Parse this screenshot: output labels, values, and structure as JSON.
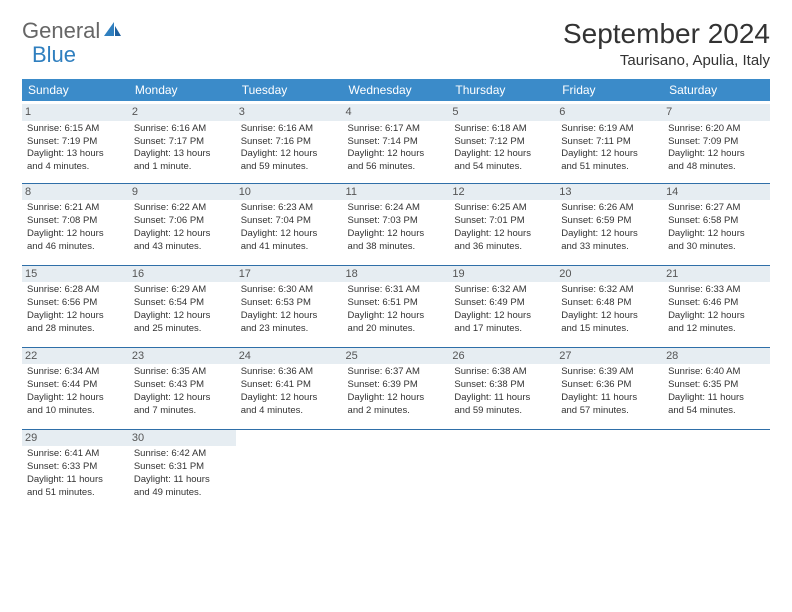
{
  "brand": {
    "part1": "General",
    "part2": "Blue"
  },
  "title": "September 2024",
  "location": "Taurisano, Apulia, Italy",
  "headers": [
    "Sunday",
    "Monday",
    "Tuesday",
    "Wednesday",
    "Thursday",
    "Friday",
    "Saturday"
  ],
  "colors": {
    "header_bg": "#3b8bc9",
    "header_fg": "#ffffff",
    "daynum_bg": "#e6edf2",
    "rule": "#2f6fa8",
    "brand_blue": "#2f7fbf",
    "text": "#333333"
  },
  "weeks": [
    [
      {
        "n": "1",
        "sr": "Sunrise: 6:15 AM",
        "ss": "Sunset: 7:19 PM",
        "d1": "Daylight: 13 hours",
        "d2": "and 4 minutes."
      },
      {
        "n": "2",
        "sr": "Sunrise: 6:16 AM",
        "ss": "Sunset: 7:17 PM",
        "d1": "Daylight: 13 hours",
        "d2": "and 1 minute."
      },
      {
        "n": "3",
        "sr": "Sunrise: 6:16 AM",
        "ss": "Sunset: 7:16 PM",
        "d1": "Daylight: 12 hours",
        "d2": "and 59 minutes."
      },
      {
        "n": "4",
        "sr": "Sunrise: 6:17 AM",
        "ss": "Sunset: 7:14 PM",
        "d1": "Daylight: 12 hours",
        "d2": "and 56 minutes."
      },
      {
        "n": "5",
        "sr": "Sunrise: 6:18 AM",
        "ss": "Sunset: 7:12 PM",
        "d1": "Daylight: 12 hours",
        "d2": "and 54 minutes."
      },
      {
        "n": "6",
        "sr": "Sunrise: 6:19 AM",
        "ss": "Sunset: 7:11 PM",
        "d1": "Daylight: 12 hours",
        "d2": "and 51 minutes."
      },
      {
        "n": "7",
        "sr": "Sunrise: 6:20 AM",
        "ss": "Sunset: 7:09 PM",
        "d1": "Daylight: 12 hours",
        "d2": "and 48 minutes."
      }
    ],
    [
      {
        "n": "8",
        "sr": "Sunrise: 6:21 AM",
        "ss": "Sunset: 7:08 PM",
        "d1": "Daylight: 12 hours",
        "d2": "and 46 minutes."
      },
      {
        "n": "9",
        "sr": "Sunrise: 6:22 AM",
        "ss": "Sunset: 7:06 PM",
        "d1": "Daylight: 12 hours",
        "d2": "and 43 minutes."
      },
      {
        "n": "10",
        "sr": "Sunrise: 6:23 AM",
        "ss": "Sunset: 7:04 PM",
        "d1": "Daylight: 12 hours",
        "d2": "and 41 minutes."
      },
      {
        "n": "11",
        "sr": "Sunrise: 6:24 AM",
        "ss": "Sunset: 7:03 PM",
        "d1": "Daylight: 12 hours",
        "d2": "and 38 minutes."
      },
      {
        "n": "12",
        "sr": "Sunrise: 6:25 AM",
        "ss": "Sunset: 7:01 PM",
        "d1": "Daylight: 12 hours",
        "d2": "and 36 minutes."
      },
      {
        "n": "13",
        "sr": "Sunrise: 6:26 AM",
        "ss": "Sunset: 6:59 PM",
        "d1": "Daylight: 12 hours",
        "d2": "and 33 minutes."
      },
      {
        "n": "14",
        "sr": "Sunrise: 6:27 AM",
        "ss": "Sunset: 6:58 PM",
        "d1": "Daylight: 12 hours",
        "d2": "and 30 minutes."
      }
    ],
    [
      {
        "n": "15",
        "sr": "Sunrise: 6:28 AM",
        "ss": "Sunset: 6:56 PM",
        "d1": "Daylight: 12 hours",
        "d2": "and 28 minutes."
      },
      {
        "n": "16",
        "sr": "Sunrise: 6:29 AM",
        "ss": "Sunset: 6:54 PM",
        "d1": "Daylight: 12 hours",
        "d2": "and 25 minutes."
      },
      {
        "n": "17",
        "sr": "Sunrise: 6:30 AM",
        "ss": "Sunset: 6:53 PM",
        "d1": "Daylight: 12 hours",
        "d2": "and 23 minutes."
      },
      {
        "n": "18",
        "sr": "Sunrise: 6:31 AM",
        "ss": "Sunset: 6:51 PM",
        "d1": "Daylight: 12 hours",
        "d2": "and 20 minutes."
      },
      {
        "n": "19",
        "sr": "Sunrise: 6:32 AM",
        "ss": "Sunset: 6:49 PM",
        "d1": "Daylight: 12 hours",
        "d2": "and 17 minutes."
      },
      {
        "n": "20",
        "sr": "Sunrise: 6:32 AM",
        "ss": "Sunset: 6:48 PM",
        "d1": "Daylight: 12 hours",
        "d2": "and 15 minutes."
      },
      {
        "n": "21",
        "sr": "Sunrise: 6:33 AM",
        "ss": "Sunset: 6:46 PM",
        "d1": "Daylight: 12 hours",
        "d2": "and 12 minutes."
      }
    ],
    [
      {
        "n": "22",
        "sr": "Sunrise: 6:34 AM",
        "ss": "Sunset: 6:44 PM",
        "d1": "Daylight: 12 hours",
        "d2": "and 10 minutes."
      },
      {
        "n": "23",
        "sr": "Sunrise: 6:35 AM",
        "ss": "Sunset: 6:43 PM",
        "d1": "Daylight: 12 hours",
        "d2": "and 7 minutes."
      },
      {
        "n": "24",
        "sr": "Sunrise: 6:36 AM",
        "ss": "Sunset: 6:41 PM",
        "d1": "Daylight: 12 hours",
        "d2": "and 4 minutes."
      },
      {
        "n": "25",
        "sr": "Sunrise: 6:37 AM",
        "ss": "Sunset: 6:39 PM",
        "d1": "Daylight: 12 hours",
        "d2": "and 2 minutes."
      },
      {
        "n": "26",
        "sr": "Sunrise: 6:38 AM",
        "ss": "Sunset: 6:38 PM",
        "d1": "Daylight: 11 hours",
        "d2": "and 59 minutes."
      },
      {
        "n": "27",
        "sr": "Sunrise: 6:39 AM",
        "ss": "Sunset: 6:36 PM",
        "d1": "Daylight: 11 hours",
        "d2": "and 57 minutes."
      },
      {
        "n": "28",
        "sr": "Sunrise: 6:40 AM",
        "ss": "Sunset: 6:35 PM",
        "d1": "Daylight: 11 hours",
        "d2": "and 54 minutes."
      }
    ],
    [
      {
        "n": "29",
        "sr": "Sunrise: 6:41 AM",
        "ss": "Sunset: 6:33 PM",
        "d1": "Daylight: 11 hours",
        "d2": "and 51 minutes."
      },
      {
        "n": "30",
        "sr": "Sunrise: 6:42 AM",
        "ss": "Sunset: 6:31 PM",
        "d1": "Daylight: 11 hours",
        "d2": "and 49 minutes."
      },
      null,
      null,
      null,
      null,
      null
    ]
  ]
}
